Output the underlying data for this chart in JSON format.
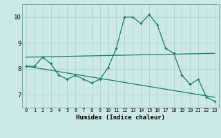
{
  "xlabel": "Humidex (Indice chaleur)",
  "bg_color": "#cce9e5",
  "grid_color": "#add4cf",
  "line_color": "#1a7a6e",
  "xlim": [
    -0.5,
    23.5
  ],
  "ylim": [
    6.5,
    10.5
  ],
  "yticks": [
    7,
    8,
    9,
    10
  ],
  "xticks": [
    0,
    1,
    2,
    3,
    4,
    5,
    6,
    7,
    8,
    9,
    10,
    11,
    12,
    13,
    14,
    15,
    16,
    17,
    18,
    19,
    20,
    21,
    22,
    23
  ],
  "line1_x": [
    0,
    1,
    2,
    3,
    4,
    5,
    6,
    7,
    8,
    9,
    10,
    11,
    12,
    13,
    14,
    15,
    16,
    17,
    18,
    19,
    20,
    21,
    22,
    23
  ],
  "line1_y": [
    8.1,
    8.1,
    8.45,
    8.2,
    7.75,
    7.6,
    7.75,
    7.6,
    7.45,
    7.6,
    8.05,
    8.8,
    10.0,
    10.0,
    9.75,
    10.1,
    9.7,
    8.8,
    8.6,
    7.75,
    7.4,
    7.6,
    6.9,
    6.75
  ],
  "line2_x": [
    0,
    23
  ],
  "line2_y": [
    8.1,
    6.9
  ],
  "line3_x": [
    0,
    23
  ],
  "line3_y": [
    8.45,
    8.6
  ]
}
